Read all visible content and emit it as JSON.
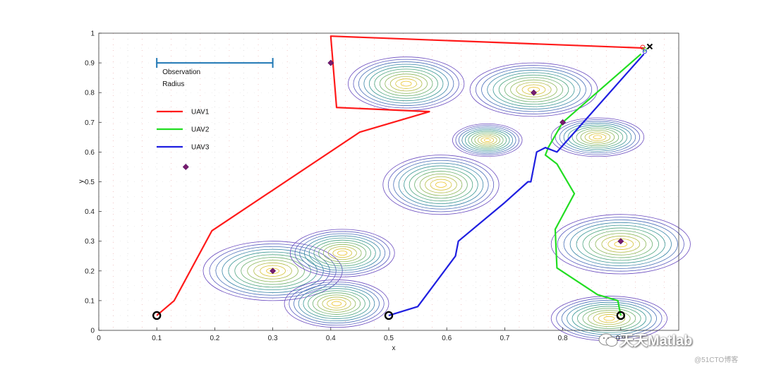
{
  "chart_data": {
    "type": "line",
    "xlabel": "x",
    "ylabel": "y",
    "xlim": [
      0,
      1
    ],
    "ylim": [
      0,
      1
    ],
    "xticks": [
      "0",
      "0.1",
      "0.2",
      "0.3",
      "0.4",
      "0.5",
      "0.6",
      "0.7",
      "0.8",
      "0.9"
    ],
    "yticks": [
      "0",
      "0.1",
      "0.2",
      "0.3",
      "0.4",
      "0.5",
      "0.6",
      "0.7",
      "0.8",
      "0.9",
      "1"
    ],
    "legend": {
      "placement": "top-left",
      "observation_label": "Observation",
      "radius_label": "Radius",
      "observation_radius": 0.2
    },
    "series": [
      {
        "name": "UAV1",
        "color": "#ff1a1a",
        "x": [
          0.1,
          0.13,
          0.195,
          0.45,
          0.57,
          0.41,
          0.4,
          0.94
        ],
        "y": [
          0.05,
          0.1,
          0.335,
          0.667,
          0.736,
          0.75,
          0.99,
          0.95
        ]
      },
      {
        "name": "UAV2",
        "color": "#22dd22",
        "x": [
          0.9,
          0.895,
          0.86,
          0.86,
          0.79,
          0.787,
          0.82,
          0.79,
          0.77,
          0.775,
          0.8,
          0.935
        ],
        "y": [
          0.05,
          0.1,
          0.12,
          0.12,
          0.21,
          0.34,
          0.46,
          0.56,
          0.59,
          0.615,
          0.7,
          0.93
        ]
      },
      {
        "name": "UAV3",
        "color": "#1f1fe0",
        "x": [
          0.5,
          0.55,
          0.615,
          0.62,
          0.7,
          0.74,
          0.745,
          0.755,
          0.77,
          0.79,
          0.94
        ],
        "y": [
          0.05,
          0.08,
          0.25,
          0.3,
          0.43,
          0.5,
          0.5,
          0.6,
          0.615,
          0.6,
          0.93
        ]
      }
    ],
    "start_points": [
      {
        "x": 0.1,
        "y": 0.05
      },
      {
        "x": 0.5,
        "y": 0.05
      },
      {
        "x": 0.9,
        "y": 0.05
      }
    ],
    "goal_point": {
      "x": 0.95,
      "y": 0.955
    },
    "targets": [
      {
        "x": 0.4,
        "y": 0.9
      },
      {
        "x": 0.15,
        "y": 0.55
      },
      {
        "x": 0.3,
        "y": 0.2
      },
      {
        "x": 0.75,
        "y": 0.8
      },
      {
        "x": 0.8,
        "y": 0.7
      },
      {
        "x": 0.9,
        "y": 0.3
      }
    ],
    "contour_peaks": [
      {
        "x": 0.53,
        "y": 0.83,
        "rx": 0.1,
        "ry": 0.09
      },
      {
        "x": 0.75,
        "y": 0.81,
        "rx": 0.11,
        "ry": 0.09
      },
      {
        "x": 0.67,
        "y": 0.64,
        "rx": 0.06,
        "ry": 0.055
      },
      {
        "x": 0.86,
        "y": 0.65,
        "rx": 0.08,
        "ry": 0.065
      },
      {
        "x": 0.59,
        "y": 0.49,
        "rx": 0.1,
        "ry": 0.1
      },
      {
        "x": 0.3,
        "y": 0.2,
        "rx": 0.12,
        "ry": 0.1
      },
      {
        "x": 0.42,
        "y": 0.26,
        "rx": 0.09,
        "ry": 0.08
      },
      {
        "x": 0.41,
        "y": 0.09,
        "rx": 0.09,
        "ry": 0.08
      },
      {
        "x": 0.9,
        "y": 0.29,
        "rx": 0.12,
        "ry": 0.1
      },
      {
        "x": 0.88,
        "y": 0.04,
        "rx": 0.1,
        "ry": 0.075
      }
    ],
    "contour_colors": [
      "#ecc42b",
      "#d6c23a",
      "#b4bd4a",
      "#8fb85c",
      "#6cb06f",
      "#4fa681",
      "#3d9896",
      "#3b86a8",
      "#4a70b8",
      "#5a5bbf",
      "#6a4bbf"
    ],
    "grid": "dotted"
  },
  "watermark": {
    "main": "天天Matlab",
    "sub": "@51CTO博客"
  }
}
